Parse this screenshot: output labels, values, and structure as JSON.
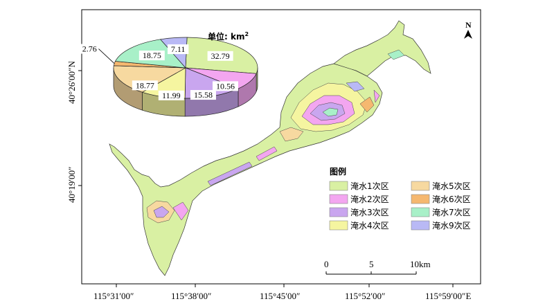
{
  "map": {
    "x_ticks": [
      "115°31′00″",
      "115°38′00″",
      "115°45′00″",
      "115°52′00″",
      "115°59′00″E"
    ],
    "y_ticks": [
      "40°26′00″N",
      "40°19′00″"
    ],
    "north_label": "N",
    "scale_bar": {
      "labels": [
        "0",
        "5",
        "10km"
      ]
    }
  },
  "legend": {
    "title": "图例",
    "items": [
      {
        "label": "淹水1次区",
        "color": "#d9f0a3"
      },
      {
        "label": "淹水2次区",
        "color": "#f3a6f0"
      },
      {
        "label": "淹水3次区",
        "color": "#c9a6ef"
      },
      {
        "label": "淹水4次区",
        "color": "#f5f5a0"
      },
      {
        "label": "淹水5次区",
        "color": "#f7d9a0"
      },
      {
        "label": "淹水6次区",
        "color": "#f5b870"
      },
      {
        "label": "淹水7次区",
        "color": "#a8f0c8"
      },
      {
        "label": "淹水9次区",
        "color": "#b9b9f5"
      }
    ]
  },
  "chart_data": {
    "type": "pie",
    "title": "",
    "unit": "单位: km",
    "unit_sup": "2",
    "categories": [
      "淹水1次区",
      "淹水2次区",
      "淹水3次区",
      "淹水4次区",
      "淹水5次区",
      "淹水6次区",
      "淹水7次区",
      "淹水9次区"
    ],
    "values": [
      32.79,
      10.56,
      15.58,
      11.99,
      18.77,
      2.76,
      18.75,
      7.11
    ],
    "labels": [
      "32.79",
      "10.56",
      "15.58",
      "11.99",
      "18.77",
      "2.76",
      "18.75",
      "7.11"
    ],
    "colors": [
      "#d9f0a3",
      "#f3a6f0",
      "#c9a6ef",
      "#f5f5a0",
      "#f7d9a0",
      "#f5b870",
      "#a8f0c8",
      "#b9b9f5"
    ]
  }
}
